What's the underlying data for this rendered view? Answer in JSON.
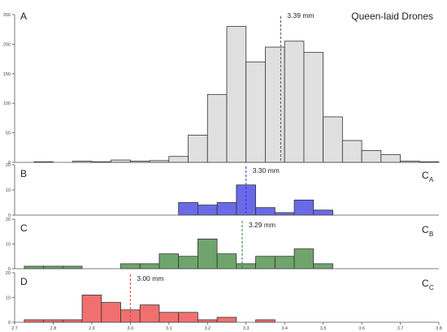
{
  "chart_data": [
    {
      "type": "bar",
      "panel_label": "A",
      "title": "Queen-laid Drones",
      "ylim": [
        0,
        250
      ],
      "yticks": [
        0,
        50,
        100,
        150,
        200,
        250
      ],
      "bins": [
        [
          2.725,
          2.75
        ],
        [
          2.75,
          2.775
        ],
        [
          2.775,
          2.8
        ],
        [
          2.8,
          2.825
        ],
        [
          2.825,
          2.85
        ],
        [
          2.85,
          2.875
        ],
        [
          2.875,
          2.9
        ],
        [
          2.9,
          2.925
        ],
        [
          2.925,
          2.95
        ],
        [
          2.95,
          2.975
        ],
        [
          2.975,
          3.0
        ],
        [
          3.0,
          3.025
        ],
        [
          3.025,
          3.05
        ],
        [
          3.05,
          3.075
        ],
        [
          3.075,
          3.1
        ],
        [
          3.1,
          3.125
        ],
        [
          3.125,
          3.15
        ],
        [
          3.15,
          3.175
        ],
        [
          3.175,
          3.2
        ],
        [
          3.2,
          3.225
        ],
        [
          3.225,
          3.25
        ],
        [
          3.25,
          3.275
        ],
        [
          3.275,
          3.3
        ],
        [
          3.3,
          3.325
        ],
        [
          3.325,
          3.35
        ],
        [
          3.35,
          3.375
        ],
        [
          3.375,
          3.4
        ],
        [
          3.4,
          3.425
        ],
        [
          3.425,
          3.45
        ],
        [
          3.45,
          3.475
        ],
        [
          3.475,
          3.5
        ],
        [
          3.5,
          3.525
        ],
        [
          3.525,
          3.55
        ],
        [
          3.55,
          3.575
        ],
        [
          3.575,
          3.6
        ],
        [
          3.6,
          3.625
        ],
        [
          3.625,
          3.65
        ],
        [
          3.65,
          3.675
        ],
        [
          3.675,
          3.7
        ],
        [
          3.7,
          3.725
        ],
        [
          3.725,
          3.75
        ],
        [
          3.75,
          3.775
        ]
      ],
      "values": [
        0,
        0,
        0,
        0,
        0,
        0,
        0,
        0,
        0,
        0,
        0,
        0,
        0,
        0,
        0,
        0,
        0,
        0,
        0,
        0,
        0,
        0,
        0,
        0,
        0,
        0,
        0,
        0,
        0,
        0,
        0,
        0,
        0,
        0,
        0,
        0,
        0,
        0,
        0,
        0,
        0,
        0
      ],
      "hist_edges": [
        2.75,
        2.8,
        2.85,
        2.9,
        2.95,
        3.0,
        3.05,
        3.1,
        3.15,
        3.2,
        3.25,
        3.3,
        3.35,
        3.4,
        3.45,
        3.5,
        3.55,
        3.6,
        3.65,
        3.7,
        3.75,
        3.8
      ],
      "hist_counts": [
        1,
        0,
        2,
        1,
        4,
        2,
        3,
        10,
        46,
        115,
        230,
        170,
        195,
        205,
        186,
        77,
        37,
        20,
        13,
        2,
        1
      ],
      "mean_line": {
        "x": 3.39,
        "label": "3.39 mm",
        "color": "#555555"
      },
      "fill": "#e0e0e0"
    },
    {
      "type": "bar",
      "panel_label": "B",
      "corner_label": "C",
      "corner_sub": "A",
      "ylim": [
        0,
        20
      ],
      "yticks": [
        0,
        10,
        20
      ],
      "hist_edges": [
        3.125,
        3.175,
        3.225,
        3.275,
        3.325,
        3.375,
        3.425,
        3.475,
        3.525
      ],
      "hist_counts": [
        5,
        4,
        5,
        12,
        3,
        1,
        6,
        2
      ],
      "mean_line": {
        "x": 3.3,
        "label": "3.30 mm",
        "color": "#3333cc"
      },
      "fill": "#6a6ae8"
    },
    {
      "type": "bar",
      "panel_label": "C",
      "corner_label": "C",
      "corner_sub": "B",
      "ylim": [
        0,
        20
      ],
      "yticks": [
        0,
        10,
        20
      ],
      "hist_edges": [
        2.725,
        2.775,
        2.825,
        2.875,
        2.925,
        2.975,
        3.025,
        3.075,
        3.125,
        3.175,
        3.225,
        3.275,
        3.325,
        3.375,
        3.425,
        3.475,
        3.525,
        3.575
      ],
      "hist_counts": [
        1,
        1,
        1,
        0,
        0,
        2,
        2,
        6,
        5,
        12,
        6,
        2,
        5,
        5,
        8,
        2,
        0
      ],
      "mean_line": {
        "x": 3.29,
        "label": "3.29 mm",
        "color": "#2e7d32"
      },
      "fill": "#6fa56c"
    },
    {
      "type": "bar",
      "panel_label": "D",
      "corner_label": "C",
      "corner_sub": "C",
      "ylim": [
        0,
        20
      ],
      "yticks": [
        0,
        10,
        20
      ],
      "hist_edges": [
        2.725,
        2.775,
        2.825,
        2.875,
        2.925,
        2.975,
        3.025,
        3.075,
        3.125,
        3.175,
        3.225,
        3.275,
        3.325,
        3.375
      ],
      "hist_counts": [
        1,
        1,
        1,
        11,
        8,
        5,
        7,
        4,
        4,
        1,
        2,
        0,
        1
      ],
      "mean_line": {
        "x": 3.0,
        "label": "3.00 mm",
        "color": "#e53935"
      },
      "fill": "#f07070"
    }
  ],
  "xaxis": {
    "xlim": [
      2.7,
      3.8
    ],
    "ticks": [
      2.7,
      2.8,
      2.9,
      3.0,
      3.1,
      3.2,
      3.3,
      3.4,
      3.5,
      3.6,
      3.7,
      3.8
    ],
    "tick_labels": [
      "2.7",
      "2.8",
      "2.9",
      "3.0",
      "3.1",
      "3.2",
      "3.3",
      "3.4",
      "3.5",
      "3.6",
      "3.7",
      "3.8"
    ]
  }
}
